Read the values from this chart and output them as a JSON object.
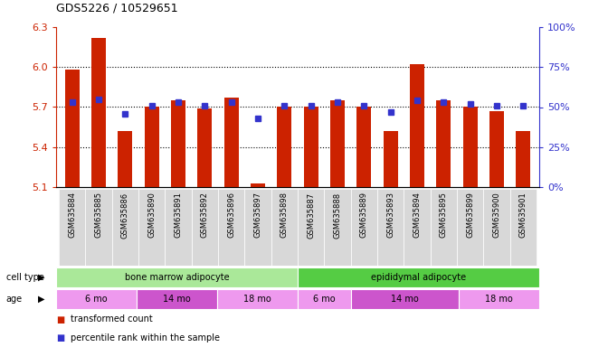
{
  "title": "GDS5226 / 10529651",
  "samples": [
    "GSM635884",
    "GSM635885",
    "GSM635886",
    "GSM635890",
    "GSM635891",
    "GSM635892",
    "GSM635896",
    "GSM635897",
    "GSM635898",
    "GSM635887",
    "GSM635888",
    "GSM635889",
    "GSM635893",
    "GSM635894",
    "GSM635895",
    "GSM635899",
    "GSM635900",
    "GSM635901"
  ],
  "bar_values": [
    5.98,
    6.22,
    5.52,
    5.7,
    5.75,
    5.69,
    5.77,
    5.13,
    5.7,
    5.7,
    5.75,
    5.7,
    5.52,
    6.02,
    5.75,
    5.7,
    5.67,
    5.52
  ],
  "percentile_values": [
    53,
    55,
    46,
    51,
    53,
    51,
    53,
    43,
    51,
    51,
    53,
    51,
    47,
    54,
    53,
    52,
    51,
    51
  ],
  "ylim_left": [
    5.1,
    6.3
  ],
  "ylim_right": [
    0,
    100
  ],
  "yticks_left": [
    5.1,
    5.4,
    5.7,
    6.0,
    6.3
  ],
  "yticks_right": [
    0,
    25,
    50,
    75,
    100
  ],
  "ytick_labels_right": [
    "0%",
    "25%",
    "50%",
    "75%",
    "100%"
  ],
  "bar_color": "#cc2200",
  "dot_color": "#3333cc",
  "bar_width": 0.55,
  "cell_type_groups": [
    {
      "label": "bone marrow adipocyte",
      "start": 0,
      "end": 9,
      "color": "#aae899"
    },
    {
      "label": "epididymal adipocyte",
      "start": 9,
      "end": 18,
      "color": "#55cc44"
    }
  ],
  "age_groups": [
    {
      "label": "6 mo",
      "start": 0,
      "end": 3,
      "color": "#ee99ee"
    },
    {
      "label": "14 mo",
      "start": 3,
      "end": 6,
      "color": "#cc55cc"
    },
    {
      "label": "18 mo",
      "start": 6,
      "end": 9,
      "color": "#ee99ee"
    },
    {
      "label": "6 mo",
      "start": 9,
      "end": 11,
      "color": "#ee99ee"
    },
    {
      "label": "14 mo",
      "start": 11,
      "end": 15,
      "color": "#cc55cc"
    },
    {
      "label": "18 mo",
      "start": 15,
      "end": 18,
      "color": "#ee99ee"
    }
  ],
  "cell_type_label": "cell type",
  "age_label": "age",
  "left_tick_color": "#cc2200",
  "right_tick_color": "#3333cc",
  "background_color": "#ffffff"
}
